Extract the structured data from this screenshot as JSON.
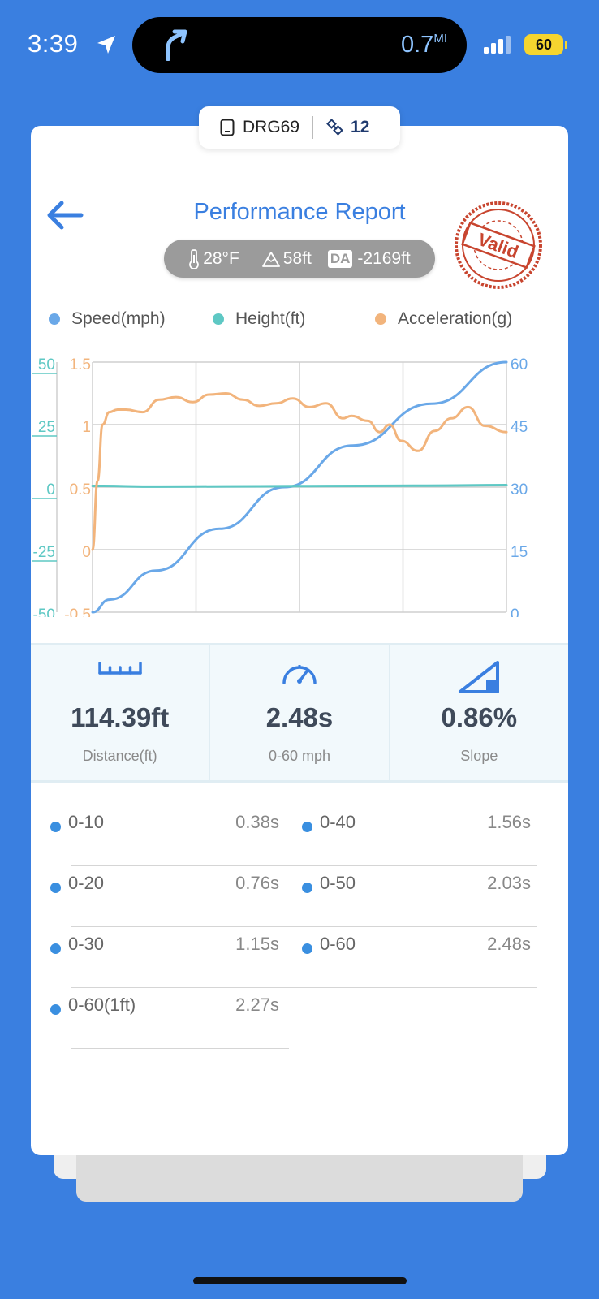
{
  "status": {
    "time": "3:39",
    "distance": "0.7",
    "distance_unit": "MI",
    "battery": "60"
  },
  "device": {
    "name": "DRG69",
    "satellites": "12"
  },
  "header": {
    "title": "Performance Report",
    "stamp_text": "Valid"
  },
  "conditions": {
    "temperature": "28°F",
    "altitude": "58ft",
    "da_label": "DA",
    "density_altitude": "-2169ft"
  },
  "legend": [
    {
      "label": "Speed(mph)",
      "color": "#6aa8e8"
    },
    {
      "label": "Height(ft)",
      "color": "#5ec8c4"
    },
    {
      "label": "Acceleration(g)",
      "color": "#f2b47c"
    }
  ],
  "chart_data": {
    "type": "line",
    "axes": {
      "height_ticks": [
        "50",
        "25",
        "0",
        "-25",
        "-50"
      ],
      "accel_ticks": [
        "1.5",
        "1",
        "0.5",
        "0",
        "-0.5"
      ],
      "speed_ticks": [
        "60",
        "45",
        "30",
        "15",
        "0"
      ],
      "height_range": [
        -50,
        50
      ],
      "accel_range": [
        -0.5,
        1.5
      ],
      "speed_range": [
        0,
        60
      ],
      "time_range": [
        0,
        2.48
      ],
      "grid": true
    },
    "series": [
      {
        "name": "Speed(mph)",
        "axis": "speed",
        "color": "#6aa8e8",
        "t": [
          0,
          0.1,
          0.38,
          0.76,
          1.15,
          1.56,
          2.03,
          2.48
        ],
        "values": [
          0,
          3,
          10,
          20,
          30,
          40,
          50,
          60
        ]
      },
      {
        "name": "Height(ft)",
        "axis": "height",
        "color": "#5ec8c4",
        "t": [
          0,
          0.4,
          0.8,
          1.2,
          1.6,
          2.0,
          2.48
        ],
        "values": [
          0.5,
          0.2,
          0.3,
          0.4,
          0.5,
          0.6,
          0.8
        ]
      },
      {
        "name": "Acceleration(g)",
        "axis": "accel",
        "color": "#f2b47c",
        "t": [
          0,
          0.03,
          0.06,
          0.1,
          0.15,
          0.2,
          0.3,
          0.4,
          0.5,
          0.6,
          0.7,
          0.8,
          0.9,
          1.0,
          1.1,
          1.2,
          1.3,
          1.4,
          1.5,
          1.55,
          1.65,
          1.72,
          1.78,
          1.85,
          1.95,
          2.05,
          2.15,
          2.25,
          2.35,
          2.48
        ],
        "values": [
          0,
          0.55,
          1.0,
          1.1,
          1.12,
          1.12,
          1.1,
          1.2,
          1.22,
          1.18,
          1.24,
          1.25,
          1.2,
          1.15,
          1.17,
          1.21,
          1.14,
          1.17,
          1.05,
          1.07,
          1.03,
          0.94,
          1.0,
          0.87,
          0.79,
          0.95,
          1.05,
          1.14,
          0.99,
          0.94
        ]
      }
    ]
  },
  "stats": [
    {
      "value": "114.39ft",
      "label": "Distance(ft)",
      "icon": "ruler-icon"
    },
    {
      "value": "2.48s",
      "label": "0-60 mph",
      "icon": "speedometer-icon"
    },
    {
      "value": "0.86%",
      "label": "Slope",
      "icon": "slope-icon"
    }
  ],
  "splits": [
    {
      "label": "0-10",
      "time": "0.38s"
    },
    {
      "label": "0-40",
      "time": "1.56s"
    },
    {
      "label": "0-20",
      "time": "0.76s"
    },
    {
      "label": "0-50",
      "time": "2.03s"
    },
    {
      "label": "0-30",
      "time": "1.15s"
    },
    {
      "label": "0-60",
      "time": "2.48s"
    },
    {
      "label": "0-60(1ft)",
      "time": "2.27s"
    }
  ]
}
